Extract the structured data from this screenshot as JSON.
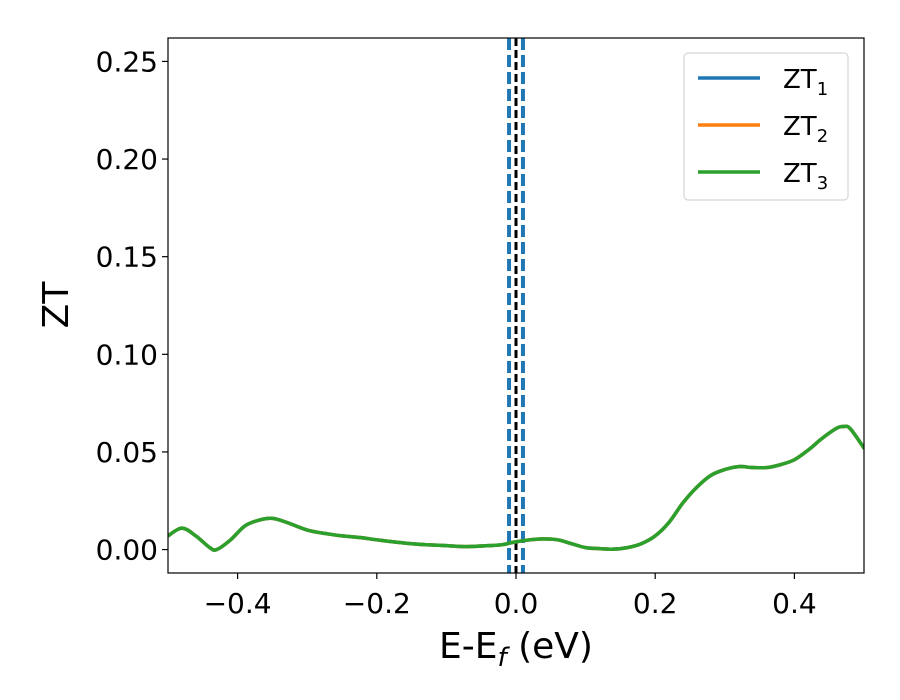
{
  "chart_data": {
    "type": "line",
    "title": "",
    "xlabel": "E-E",
    "xlabel_sub": "f",
    "xlabel_unit": " (eV)",
    "ylabel": "ZT",
    "xlim": [
      -0.5,
      0.5
    ],
    "ylim": [
      -0.012,
      0.262
    ],
    "xticks": [
      -0.4,
      -0.2,
      0.0,
      0.2,
      0.4
    ],
    "xtick_labels": [
      "−0.4",
      "−0.2",
      "0.0",
      "0.2",
      "0.4"
    ],
    "yticks": [
      0.0,
      0.05,
      0.1,
      0.15,
      0.2,
      0.25
    ],
    "ytick_labels": [
      "0.00",
      "0.05",
      "0.10",
      "0.15",
      "0.20",
      "0.25"
    ],
    "grid": false,
    "legend_position": "top-right",
    "vlines": [
      {
        "x": -0.01,
        "color": "#1f77b4",
        "style": "dashed"
      },
      {
        "x": 0.01,
        "color": "#1f77b4",
        "style": "dashed"
      },
      {
        "x": 0.0,
        "color": "#000000",
        "style": "dashed"
      }
    ],
    "x": [
      -0.5,
      -0.48,
      -0.46,
      -0.44,
      -0.43,
      -0.41,
      -0.39,
      -0.37,
      -0.35,
      -0.33,
      -0.3,
      -0.27,
      -0.25,
      -0.22,
      -0.2,
      -0.15,
      -0.1,
      -0.07,
      -0.04,
      -0.02,
      0.0,
      0.02,
      0.04,
      0.06,
      0.08,
      0.1,
      0.12,
      0.14,
      0.16,
      0.18,
      0.2,
      0.22,
      0.24,
      0.26,
      0.28,
      0.3,
      0.32,
      0.34,
      0.36,
      0.38,
      0.4,
      0.42,
      0.44,
      0.46,
      0.47,
      0.48,
      0.5
    ],
    "series": [
      {
        "name": "ZT",
        "sub": "1",
        "color": "#1f77b4",
        "values": [
          0.007,
          0.011,
          0.007,
          0.001,
          0.0,
          0.005,
          0.012,
          0.015,
          0.016,
          0.014,
          0.01,
          0.008,
          0.007,
          0.006,
          0.005,
          0.003,
          0.002,
          0.0015,
          0.002,
          0.0025,
          0.004,
          0.005,
          0.0055,
          0.005,
          0.003,
          0.001,
          0.0005,
          0.0002,
          0.001,
          0.003,
          0.007,
          0.014,
          0.024,
          0.032,
          0.038,
          0.041,
          0.0425,
          0.042,
          0.042,
          0.0435,
          0.046,
          0.051,
          0.057,
          0.062,
          0.063,
          0.062,
          0.052
        ]
      },
      {
        "name": "ZT",
        "sub": "2",
        "color": "#ff7f0e",
        "values": [
          0.007,
          0.011,
          0.007,
          0.001,
          0.0,
          0.005,
          0.012,
          0.015,
          0.016,
          0.014,
          0.01,
          0.008,
          0.007,
          0.006,
          0.005,
          0.003,
          0.002,
          0.0015,
          0.002,
          0.0025,
          0.004,
          0.005,
          0.0055,
          0.005,
          0.003,
          0.001,
          0.0005,
          0.0002,
          0.001,
          0.003,
          0.007,
          0.014,
          0.024,
          0.032,
          0.038,
          0.041,
          0.0425,
          0.042,
          0.042,
          0.0435,
          0.046,
          0.051,
          0.057,
          0.062,
          0.063,
          0.062,
          0.052
        ]
      },
      {
        "name": "ZT",
        "sub": "3",
        "color": "#2ca02c",
        "values": [
          0.007,
          0.011,
          0.007,
          0.001,
          0.0,
          0.005,
          0.012,
          0.015,
          0.016,
          0.014,
          0.01,
          0.008,
          0.007,
          0.006,
          0.005,
          0.003,
          0.002,
          0.0015,
          0.002,
          0.0025,
          0.004,
          0.005,
          0.0055,
          0.005,
          0.003,
          0.001,
          0.0005,
          0.0002,
          0.001,
          0.003,
          0.007,
          0.014,
          0.024,
          0.032,
          0.038,
          0.041,
          0.0425,
          0.042,
          0.042,
          0.0435,
          0.046,
          0.051,
          0.057,
          0.062,
          0.063,
          0.062,
          0.052
        ]
      }
    ]
  }
}
